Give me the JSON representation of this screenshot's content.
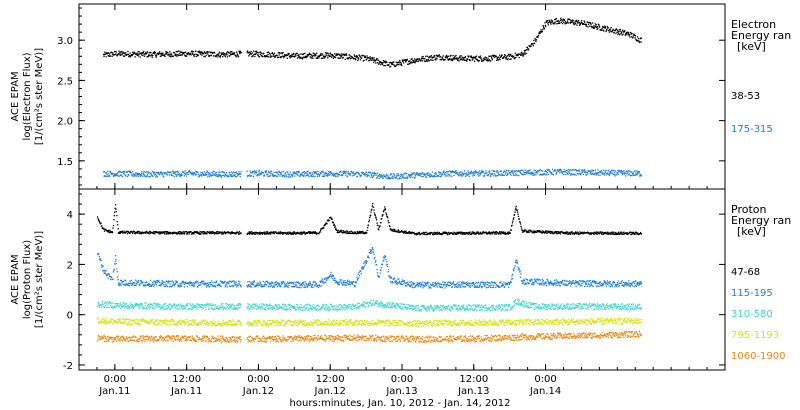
{
  "figure": {
    "x_axis_title": "hours:minutes, Jan. 10, 2012 - Jan. 14, 2012",
    "x_range_hours": [
      -6,
      102
    ]
  },
  "chart_data": [
    {
      "type": "scatter",
      "panel": "electron",
      "ylabel_lines": [
        "ACE EPAM",
        "log(Electron Flux)",
        "[1/(cm²s ster MeV)]"
      ],
      "ylim": [
        1.15,
        3.45
      ],
      "yticks": [
        1.5,
        2.0,
        2.5,
        3.0
      ],
      "ytick_labels": [
        "1.5",
        "2.0",
        "2.5",
        "3.0"
      ],
      "legend_title": [
        "Electron",
        "Energy ran",
        "[keV]"
      ],
      "series": [
        {
          "name": "38-53",
          "color": "#000000",
          "points": [
            [
              -2,
              2.82
            ],
            [
              0,
              2.84
            ],
            [
              6,
              2.83
            ],
            [
              12,
              2.84
            ],
            [
              18,
              2.83
            ],
            [
              22,
              2.84
            ],
            [
              26,
              2.83
            ],
            [
              30,
              2.81
            ],
            [
              36,
              2.82
            ],
            [
              42,
              2.78
            ],
            [
              46,
              2.7
            ],
            [
              50,
              2.76
            ],
            [
              54,
              2.8
            ],
            [
              58,
              2.78
            ],
            [
              62,
              2.78
            ],
            [
              66,
              2.8
            ],
            [
              68,
              2.83
            ],
            [
              70,
              2.98
            ],
            [
              72,
              3.22
            ],
            [
              74,
              3.25
            ],
            [
              78,
              3.22
            ],
            [
              82,
              3.15
            ],
            [
              86,
              3.08
            ],
            [
              88,
              3.0
            ]
          ]
        },
        {
          "name": "175-315",
          "color": "#1e7fd8",
          "points": [
            [
              -2,
              1.35
            ],
            [
              6,
              1.34
            ],
            [
              12,
              1.35
            ],
            [
              18,
              1.34
            ],
            [
              24,
              1.35
            ],
            [
              30,
              1.34
            ],
            [
              36,
              1.35
            ],
            [
              42,
              1.34
            ],
            [
              46,
              1.31
            ],
            [
              50,
              1.33
            ],
            [
              56,
              1.35
            ],
            [
              62,
              1.35
            ],
            [
              68,
              1.36
            ],
            [
              74,
              1.37
            ],
            [
              80,
              1.36
            ],
            [
              88,
              1.35
            ]
          ]
        }
      ]
    },
    {
      "type": "scatter",
      "panel": "proton",
      "ylabel_lines": [
        "ACE EPAM",
        "log(Proton Flux)",
        "[1/(cm²s ster MeV)]"
      ],
      "ylim": [
        -2.2,
        5.0
      ],
      "yticks": [
        -2,
        0,
        2,
        4
      ],
      "ytick_labels": [
        "-2",
        "0",
        "2",
        "4"
      ],
      "legend_title": [
        "Proton",
        "Energy ran",
        "[keV]"
      ],
      "series": [
        {
          "name": "47-68",
          "color": "#000000",
          "points": [
            [
              -3,
              3.9
            ],
            [
              -2,
              3.4
            ],
            [
              -0.5,
              3.3
            ],
            [
              0,
              4.4
            ],
            [
              0.5,
              3.3
            ],
            [
              10,
              3.28
            ],
            [
              20,
              3.28
            ],
            [
              30,
              3.27
            ],
            [
              34,
              3.28
            ],
            [
              36,
              3.9
            ],
            [
              37,
              3.35
            ],
            [
              40,
              3.28
            ],
            [
              42,
              3.3
            ],
            [
              43,
              4.4
            ],
            [
              44,
              3.4
            ],
            [
              45,
              4.3
            ],
            [
              46,
              3.4
            ],
            [
              50,
              3.25
            ],
            [
              60,
              3.27
            ],
            [
              66,
              3.28
            ],
            [
              67,
              4.3
            ],
            [
              68,
              3.35
            ],
            [
              76,
              3.27
            ],
            [
              88,
              3.26
            ]
          ]
        },
        {
          "name": "115-195",
          "color": "#1e7fd8",
          "points": [
            [
              -3,
              2.5
            ],
            [
              -2,
              1.8
            ],
            [
              -0.5,
              1.4
            ],
            [
              0,
              2.3
            ],
            [
              0.5,
              1.3
            ],
            [
              10,
              1.25
            ],
            [
              20,
              1.25
            ],
            [
              30,
              1.22
            ],
            [
              34,
              1.22
            ],
            [
              36,
              1.6
            ],
            [
              37,
              1.35
            ],
            [
              40,
              1.25
            ],
            [
              43,
              2.7
            ],
            [
              44,
              1.5
            ],
            [
              45,
              2.4
            ],
            [
              46,
              1.4
            ],
            [
              50,
              1.2
            ],
            [
              60,
              1.22
            ],
            [
              66,
              1.22
            ],
            [
              67,
              2.2
            ],
            [
              68,
              1.35
            ],
            [
              76,
              1.27
            ],
            [
              88,
              1.25
            ]
          ]
        },
        {
          "name": "310-580",
          "color": "#3fd6d0",
          "points": [
            [
              -3,
              0.45
            ],
            [
              0,
              0.4
            ],
            [
              10,
              0.35
            ],
            [
              20,
              0.35
            ],
            [
              30,
              0.32
            ],
            [
              36,
              0.32
            ],
            [
              40,
              0.33
            ],
            [
              43,
              0.5
            ],
            [
              50,
              0.28
            ],
            [
              60,
              0.3
            ],
            [
              66,
              0.32
            ],
            [
              67,
              0.55
            ],
            [
              70,
              0.35
            ],
            [
              80,
              0.35
            ],
            [
              88,
              0.33
            ]
          ]
        },
        {
          "name": "795-1193",
          "color": "#d4e40a",
          "points": [
            [
              -3,
              -0.2
            ],
            [
              0,
              -0.25
            ],
            [
              10,
              -0.28
            ],
            [
              20,
              -0.3
            ],
            [
              30,
              -0.3
            ],
            [
              40,
              -0.28
            ],
            [
              50,
              -0.32
            ],
            [
              60,
              -0.3
            ],
            [
              70,
              -0.27
            ],
            [
              80,
              -0.25
            ],
            [
              88,
              -0.22
            ]
          ]
        },
        {
          "name": "1060-1900",
          "color": "#e8880f",
          "points": [
            [
              -3,
              -0.9
            ],
            [
              0,
              -0.95
            ],
            [
              10,
              -0.92
            ],
            [
              20,
              -0.95
            ],
            [
              30,
              -0.93
            ],
            [
              40,
              -0.9
            ],
            [
              50,
              -0.95
            ],
            [
              60,
              -0.93
            ],
            [
              70,
              -0.85
            ],
            [
              80,
              -0.8
            ],
            [
              88,
              -0.75
            ]
          ]
        }
      ]
    }
  ],
  "x_axis": {
    "ticks": [
      {
        "h": 0,
        "time": "0:00",
        "date": "Jan.11"
      },
      {
        "h": 12,
        "time": "12:00",
        "date": "Jan.11"
      },
      {
        "h": 24,
        "time": "0:00",
        "date": "Jan.12"
      },
      {
        "h": 36,
        "time": "12:00",
        "date": "Jan.12"
      },
      {
        "h": 48,
        "time": "0:00",
        "date": "Jan.13"
      },
      {
        "h": 60,
        "time": "12:00",
        "date": "Jan.13"
      },
      {
        "h": 72,
        "time": "0:00",
        "date": "Jan.14"
      }
    ]
  },
  "colors": {
    "axis": "#000000",
    "background": "#ffffff"
  }
}
